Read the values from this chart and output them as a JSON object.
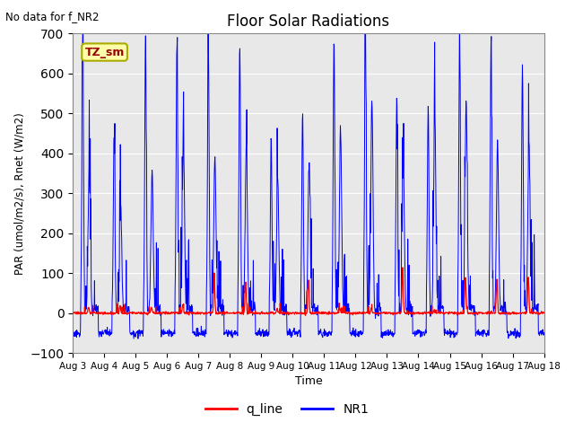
{
  "title": "Floor Solar Radiations",
  "top_left_text": "No data for f_NR2",
  "legend_box_label": "TZ_sm",
  "ylabel": "PAR (umol/m2/s), Rnet (W/m2)",
  "xlabel": "Time",
  "ylim": [
    -100,
    700
  ],
  "yticks": [
    -100,
    0,
    100,
    200,
    300,
    400,
    500,
    600,
    700
  ],
  "n_days": 15,
  "x_tick_labels": [
    "Aug 3",
    "Aug 4",
    "Aug 5",
    "Aug 6",
    "Aug 7",
    "Aug 8",
    "Aug 9",
    "Aug 10",
    "Aug 11",
    "Aug 12",
    "Aug 13",
    "Aug 14",
    "Aug 15",
    "Aug 16",
    "Aug 17",
    "Aug 18"
  ],
  "line_NR1_color": "#0000ff",
  "line_q_color": "#ff0000",
  "bg_color": "#e8e8e8",
  "legend_line_colors": [
    "#ff0000",
    "#0000ff"
  ],
  "legend_labels": [
    "q_line",
    "NR1"
  ],
  "NR1_day_peaks": [
    685,
    430,
    670,
    665,
    655,
    660,
    420,
    490,
    680,
    700,
    535,
    510,
    660,
    655,
    615
  ],
  "NR1_day_peaks2": [
    365,
    265,
    355,
    415,
    385,
    415,
    325,
    375,
    455,
    525,
    345,
    505,
    525,
    415,
    420
  ],
  "q_day_peaks": [
    15,
    18,
    15,
    20,
    85,
    80,
    10,
    85,
    10,
    12,
    115,
    8,
    90,
    85,
    90
  ],
  "night_base": -50,
  "night_noise": 5,
  "points_per_day": 96,
  "seed": 7
}
